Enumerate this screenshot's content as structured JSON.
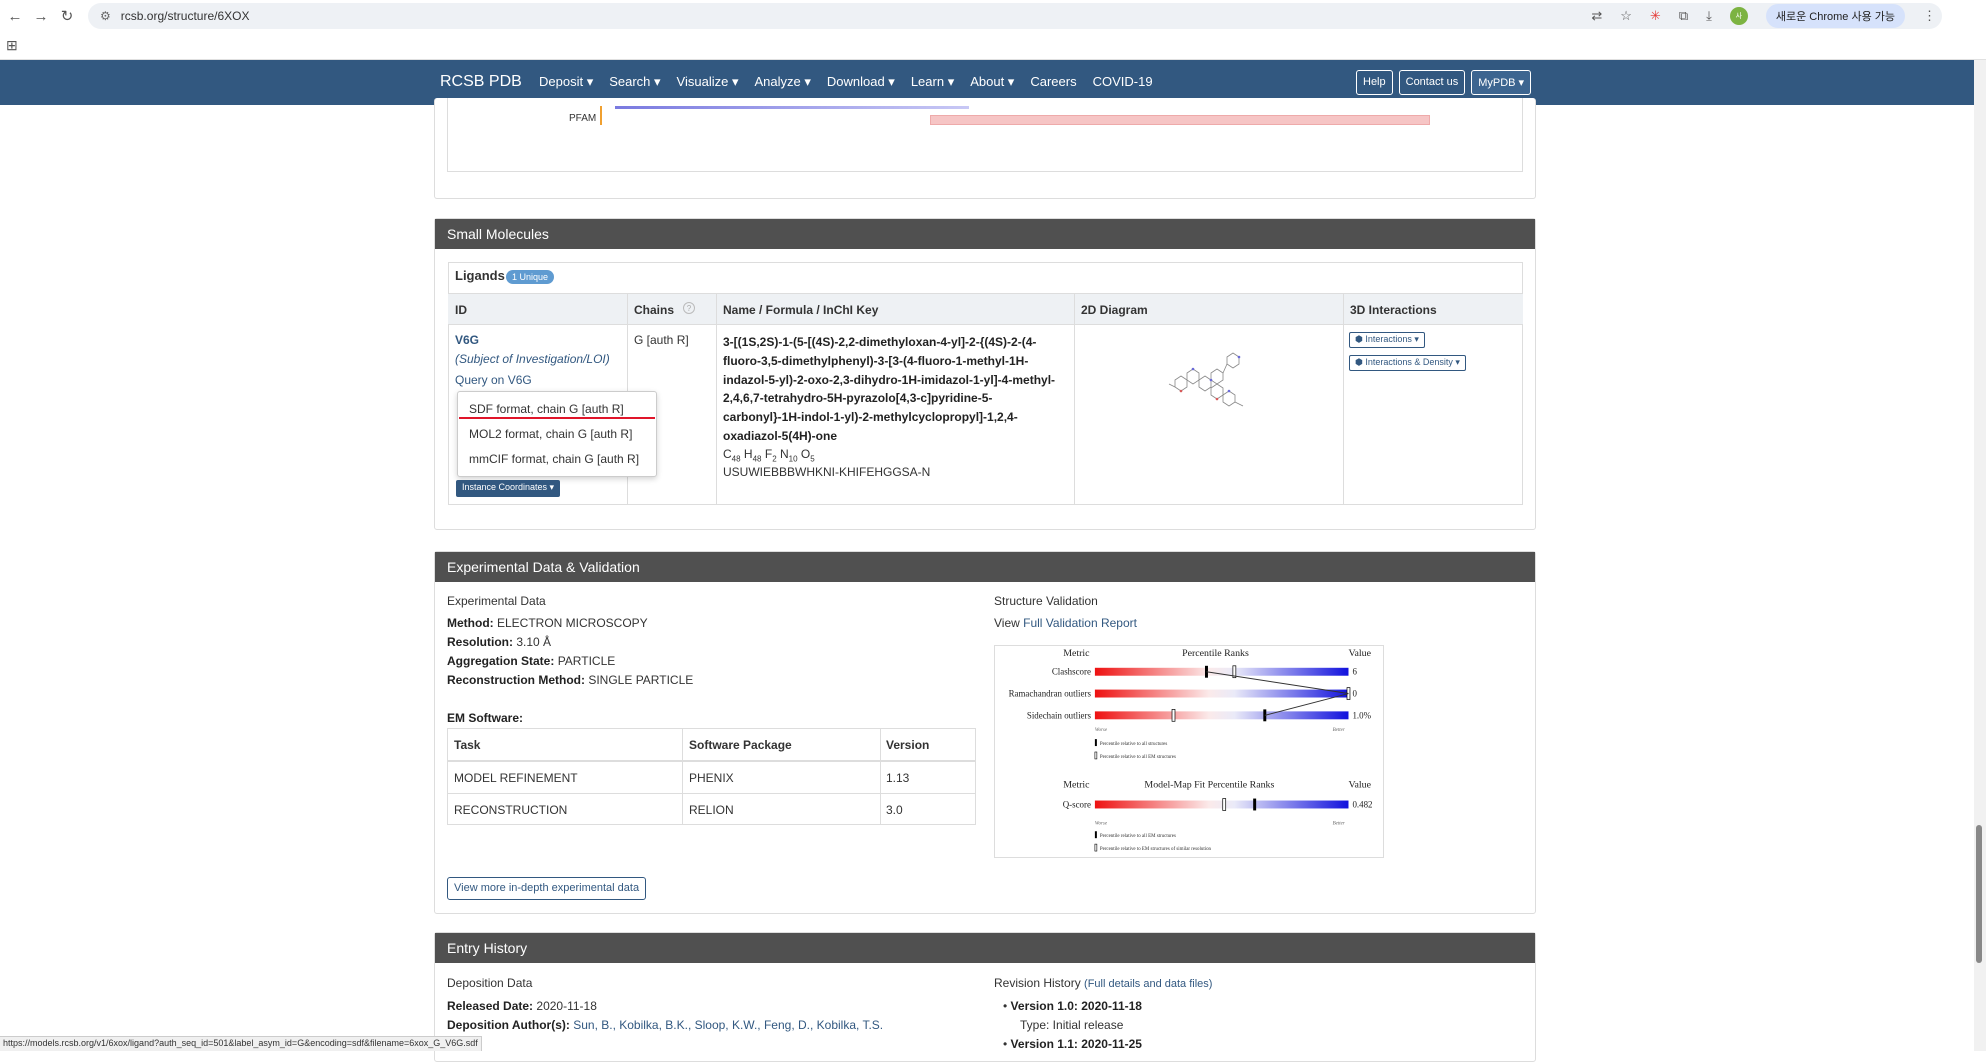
{
  "browser": {
    "url": "rcsb.org/structure/6XOX",
    "profile_initials": "사",
    "new_chrome_label": "새로운 Chrome 사용 가능",
    "status_url": "https://models.rcsb.org/v1/6xox/ligand?auth_seq_id=501&label_asym_id=G&encoding=sdf&filename=6xox_G_V6G.sdf"
  },
  "nav": {
    "logo": "RCSB PDB",
    "items": [
      "Deposit ▾",
      "Search ▾",
      "Visualize ▾",
      "Analyze ▾",
      "Download ▾",
      "Learn ▾",
      "About ▾",
      "Careers",
      "COVID-19"
    ],
    "help": "Help",
    "contact": "Contact us",
    "mypdb": "MyPDB ▾"
  },
  "pfam": {
    "label": "PFAM"
  },
  "small_molecules": {
    "heading": "Small Molecules",
    "ligands_title": "Ligands",
    "unique_badge": "1 Unique",
    "columns": [
      "ID",
      "Chains",
      "Name / Formula / InChI Key",
      "2D Diagram",
      "3D Interactions"
    ],
    "ligand": {
      "id": "V6G",
      "subject": "(Subject of Investigation/LOI)",
      "query": "Query on V6G",
      "chains": "G [auth R]",
      "name": "3-[(1S,2S)-1-(5-[(4S)-2,2-dimethyloxan-4-yl]-2-{(4S)-2-(4-fluoro-3,5-dimethylphenyl)-3-[3-(4-fluoro-1-methyl-1H-indazol-5-yl)-2-oxo-2,3-dihydro-1H-imidazol-1-yl]-4-methyl-2,4,6,7-tetrahydro-5H-pyrazolo[4,3-c]pyridine-5-carbonyl}-1H-indol-1-yl)-2-methylcyclopropyl]-1,2,4-oxadiazol-5(4H)-one",
      "formula_parts": [
        "C",
        "48",
        "H",
        "48",
        "F",
        "2",
        "N",
        "10",
        "O",
        "5"
      ],
      "inchi": "USUWIEBBBWHKNI-KHIFEHGGSA-N",
      "btn_interactions": "Interactions ▾",
      "btn_interactions_density": "Interactions & Density ▾"
    },
    "dropdown": [
      "SDF format, chain G [auth R]",
      "MOL2 format, chain G [auth R]",
      "mmCIF format, chain G [auth R]"
    ],
    "instance_coords": "Instance Coordinates ▾"
  },
  "experimental": {
    "heading": "Experimental Data & Validation",
    "sub": "Experimental Data",
    "method_label": "Method:",
    "method": "ELECTRON MICROSCOPY",
    "resolution_label": "Resolution:",
    "resolution": "3.10 Å",
    "agg_label": "Aggregation State:",
    "agg": "PARTICLE",
    "recon_label": "Reconstruction Method:",
    "recon": "SINGLE PARTICLE",
    "em_software": "EM Software:",
    "table_headers": [
      "Task",
      "Software Package",
      "Version"
    ],
    "rows": [
      [
        "MODEL REFINEMENT",
        "PHENIX",
        "1.13"
      ],
      [
        "RECONSTRUCTION",
        "RELION",
        "3.0"
      ]
    ],
    "more_button": "View more in-depth experimental data",
    "validation_title": "Structure Validation",
    "view_prefix": "View",
    "full_report": "Full Validation Report",
    "val": {
      "metric": "Metric",
      "percentile": "Percentile Ranks",
      "value": "Value",
      "rows": [
        {
          "name": "Clashscore",
          "value": "6",
          "pct_all": 0.44,
          "pct_em": 0.55
        },
        {
          "name": "Ramachandran outliers",
          "value": "0",
          "pct_all": 1.0,
          "pct_em": 1.0
        },
        {
          "name": "Sidechain outliers",
          "value": "1.0%",
          "pct_all": 0.67,
          "pct_em": 0.31
        }
      ],
      "worse": "Worse",
      "better": "Better",
      "legend_all": "Percentile relative to all structures",
      "legend_em": "Percentile relative to all EM structures",
      "metric2": "Metric",
      "mapfit": "Model-Map Fit Percentile Ranks",
      "value2": "Value",
      "qscore_name": "Q-score",
      "qscore_value": "0.482",
      "q_pct_all": 0.63,
      "q_pct_sim": 0.51,
      "legend2_all": "Percentile relative to all EM structures",
      "legend2_sim": "Percentile relative to EM structures of similar resolution"
    }
  },
  "history": {
    "heading": "Entry History",
    "deposition": "Deposition Data",
    "released_label": "Released Date:",
    "released": "2020-11-18",
    "authors_label": "Deposition Author(s):",
    "authors": "Sun, B., Kobilka, B.K., Sloop, K.W., Feng, D., Kobilka, T.S.",
    "revision": "Revision History",
    "full_details": "(Full details and data files)",
    "v1": "Version 1.0: 2020-11-18",
    "v1_type": "Type: Initial release",
    "v11": "Version 1.1: 2020-11-25"
  }
}
